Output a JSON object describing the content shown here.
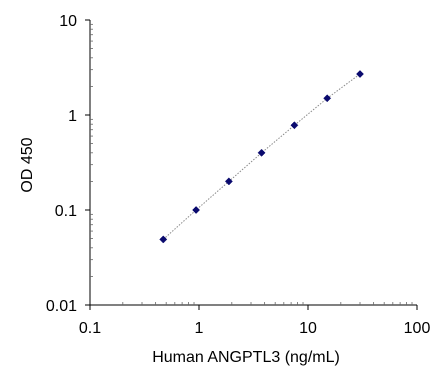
{
  "chart_data": {
    "type": "scatter",
    "title": "",
    "xlabel": "Human ANGPTL3  (ng/mL)",
    "ylabel": "OD 450",
    "xscale": "log",
    "yscale": "log",
    "xlim": [
      0.1,
      100
    ],
    "ylim": [
      0.01,
      10
    ],
    "xticks": [
      "0.1",
      "1",
      "10",
      "100"
    ],
    "yticks": [
      "0.01",
      "0.1",
      "1",
      "10"
    ],
    "grid": false,
    "legend": "none",
    "marker": "diamond",
    "marker_color": "#0a0a6e",
    "line_style": "dotted",
    "line_color": "#8a8a8a",
    "series": [
      {
        "x": [
          0.47,
          0.94,
          1.88,
          3.75,
          7.5,
          15,
          30
        ],
        "y": [
          0.049,
          0.1,
          0.2,
          0.4,
          0.78,
          1.5,
          2.7
        ]
      }
    ]
  }
}
